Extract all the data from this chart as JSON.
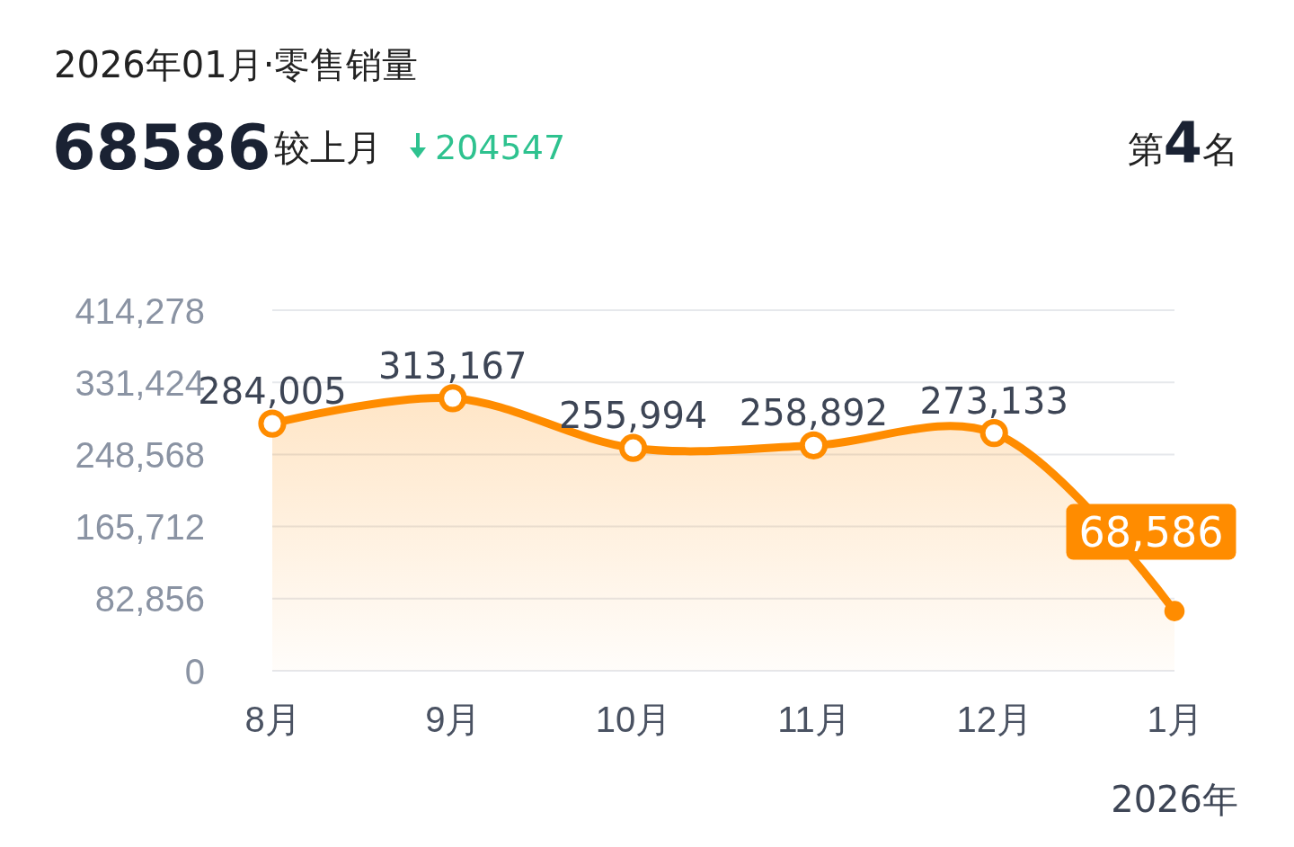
{
  "chart_data": {
    "type": "area",
    "title": "2026年01月·零售销量",
    "annotations": [
      "68586",
      "较上月",
      "204547",
      "第4名",
      "2026年"
    ],
    "categories": [
      "8月",
      "9月",
      "10月",
      "11月",
      "12月",
      "1月"
    ],
    "series": [
      {
        "color": "#ff8c00",
        "values": [
          284005,
          313167,
          255994,
          258892,
          273133,
          68586
        ],
        "value_labels": [
          "284,005",
          "313,167",
          "255,994",
          "258,892",
          "273,133",
          "68,586"
        ]
      }
    ],
    "ylim": [
      0,
      414278
    ],
    "yticks": [
      0,
      {
        "value": 82856,
        "label": "82,856"
      },
      {
        "value": 165712,
        "label": "165,712"
      },
      {
        "value": 248568,
        "label": "248,568"
      },
      {
        "value": 331424,
        "label": "331,424"
      },
      {
        "value": 414278,
        "label": "414,278"
      }
    ],
    "grid": "y",
    "marker": "circle",
    "line_style": "solid"
  }
}
